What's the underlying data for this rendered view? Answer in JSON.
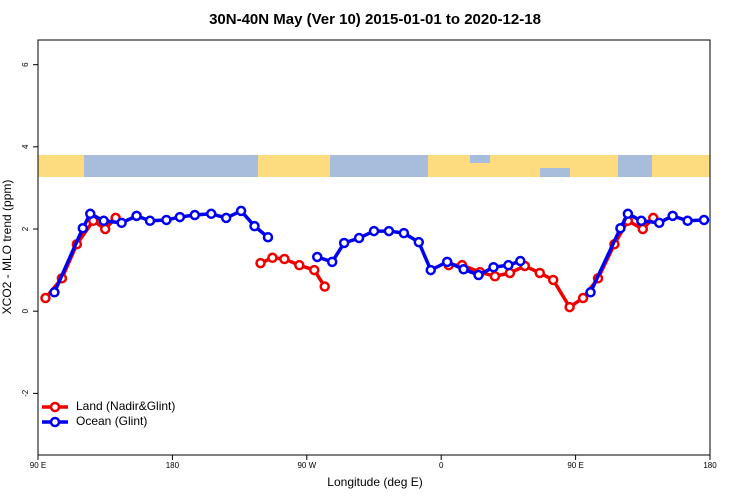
{
  "chart_data": {
    "type": "line",
    "title": "30N-40N May (Ver 10)   2015-01-01 to 2020-12-18",
    "x_label": "Longitude (deg E)",
    "y_label": "XCO2 - MLO trend (ppm)",
    "xlim": [
      90,
      540
    ],
    "ylim": [
      -3.5,
      6.6
    ],
    "xticks": [
      {
        "value": 90,
        "label": "90 E"
      },
      {
        "value": 180,
        "label": "180"
      },
      {
        "value": 270,
        "label": "90 W"
      },
      {
        "value": 360,
        "label": "0"
      },
      {
        "value": 450,
        "label": "90 E"
      },
      {
        "value": 540,
        "label": "180"
      }
    ],
    "yticks": [
      -2,
      0,
      2,
      4,
      6
    ],
    "legend": "bottomleft",
    "series": [
      {
        "name": "Land (Nadir&Glint)",
        "color": "#ee0000",
        "x": [
          95,
          106,
          116,
          127,
          135,
          142,
          null,
          239,
          247,
          255,
          265,
          275,
          282,
          null,
          365,
          374,
          386,
          396,
          406,
          416,
          426,
          435,
          446,
          455,
          465,
          476,
          485,
          495,
          502
        ],
        "values": [
          0.32,
          0.8,
          1.63,
          2.2,
          2.0,
          2.27,
          null,
          1.17,
          1.3,
          1.27,
          1.12,
          1.0,
          0.6,
          null,
          1.12,
          1.12,
          0.95,
          0.85,
          0.93,
          1.1,
          0.93,
          0.76,
          0.1,
          0.32,
          0.8,
          1.63,
          2.2,
          2.0,
          2.27
        ]
      },
      {
        "name": "Ocean (Glint)",
        "color": "#0000ee",
        "x": [
          101,
          120,
          125,
          134,
          146,
          156,
          165,
          176,
          185,
          195,
          206,
          216,
          226,
          235,
          244,
          null,
          277,
          287,
          295,
          305,
          315,
          325,
          335,
          345,
          353,
          364,
          375,
          385,
          395,
          405,
          413,
          null,
          460,
          480,
          485,
          494,
          506,
          515,
          525,
          536
        ],
        "values": [
          0.46,
          2.02,
          2.37,
          2.2,
          2.15,
          2.32,
          2.2,
          2.22,
          2.29,
          2.34,
          2.37,
          2.27,
          2.44,
          2.07,
          1.8,
          null,
          1.32,
          1.2,
          1.66,
          1.78,
          1.95,
          1.95,
          1.9,
          1.68,
          1.0,
          1.2,
          1.02,
          0.88,
          1.07,
          1.12,
          1.22,
          null,
          0.46,
          2.02,
          2.37,
          2.2,
          2.15,
          2.32,
          2.2,
          2.22
        ]
      }
    ]
  }
}
